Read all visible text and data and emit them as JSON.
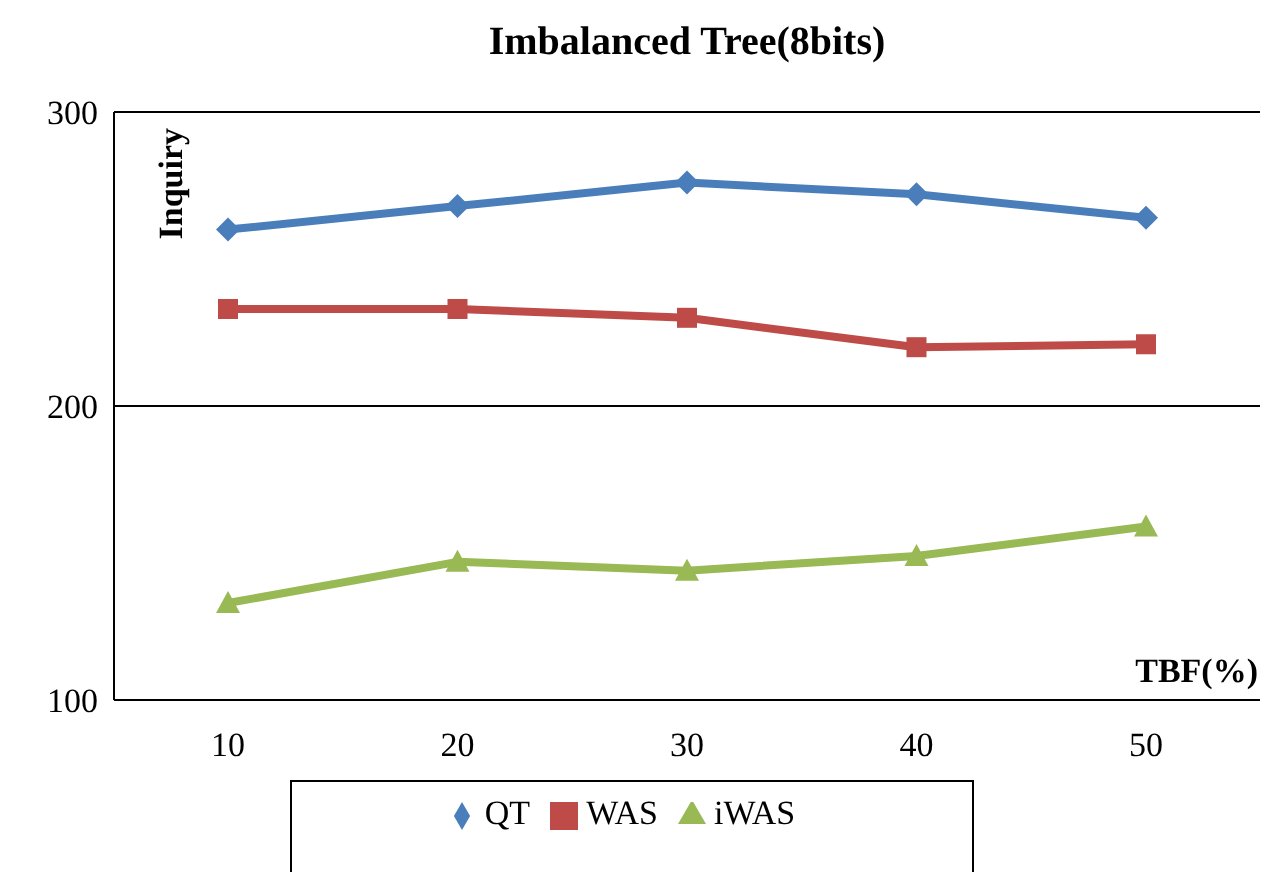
{
  "chart_data": {
    "type": "line",
    "title": "Imbalanced Tree(8bits)",
    "xlabel": "TBF(%)",
    "ylabel": "Inquiry",
    "categories": [
      "10",
      "20",
      "30",
      "40",
      "50"
    ],
    "ylim": [
      100,
      300
    ],
    "yticks": [
      100,
      200,
      300
    ],
    "grid": "y",
    "legend": "bottom",
    "series": [
      {
        "name": "QT",
        "color": "#4a7ebb",
        "marker": "diamond",
        "values": [
          260,
          268,
          276,
          272,
          264
        ]
      },
      {
        "name": "WAS",
        "color": "#be4b48",
        "marker": "square",
        "values": [
          233,
          233,
          230,
          220,
          221
        ]
      },
      {
        "name": "iWAS",
        "color": "#98b954",
        "marker": "triangle",
        "values": [
          133,
          147,
          144,
          149,
          159
        ]
      }
    ]
  }
}
